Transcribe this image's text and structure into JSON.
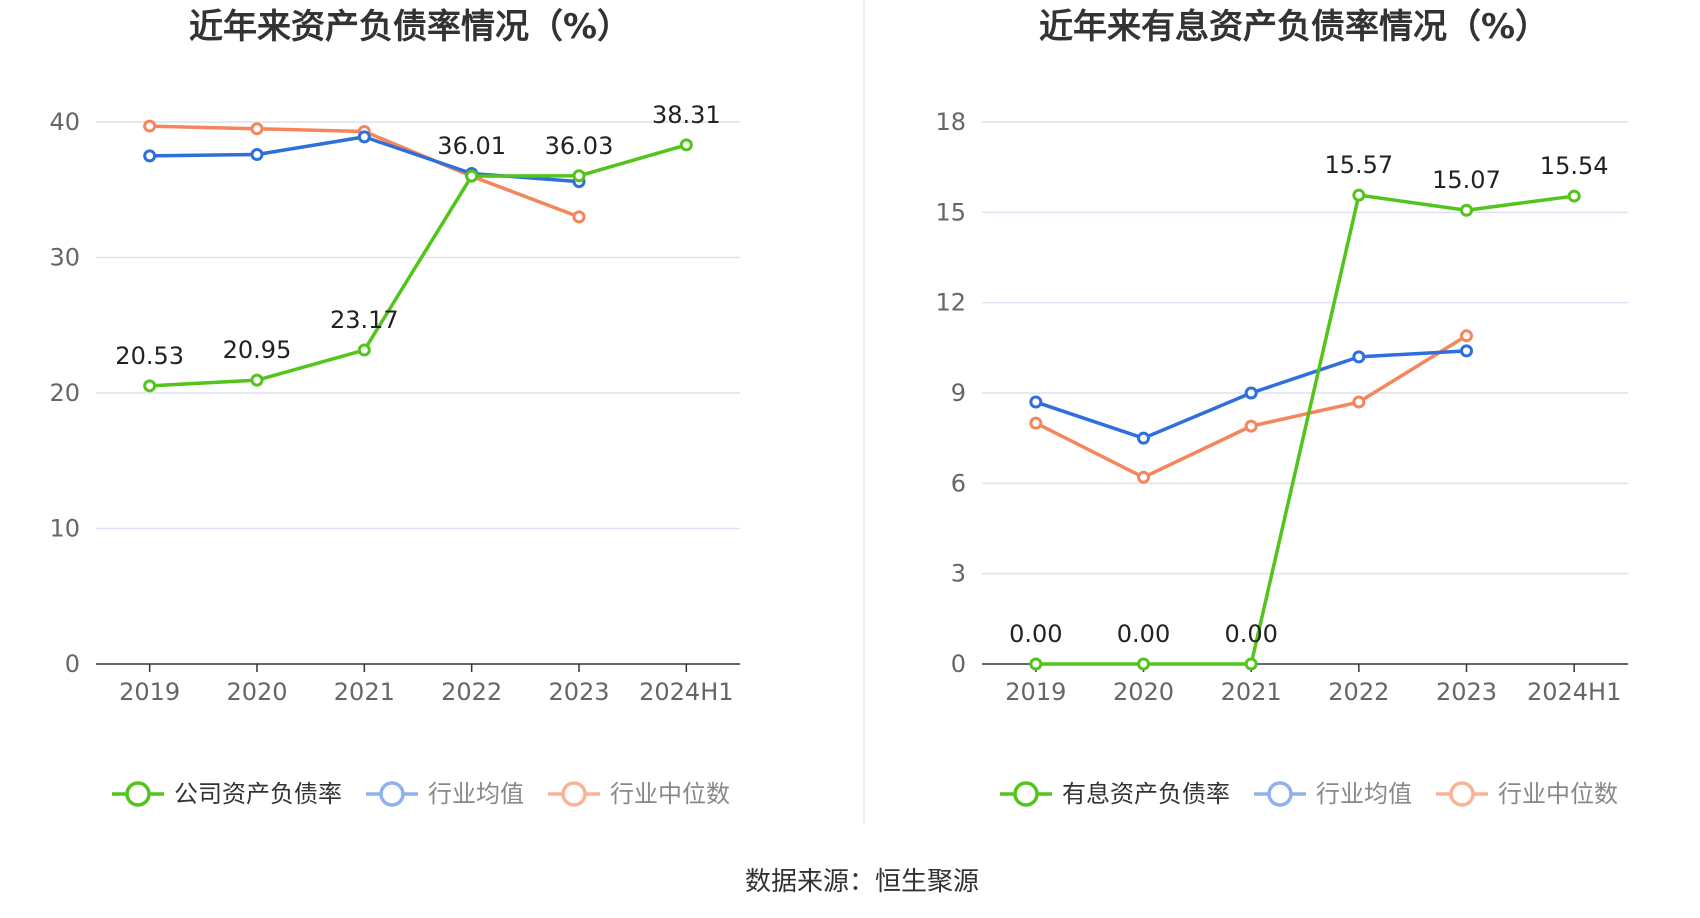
{
  "source_text": "数据来源：恒生聚源",
  "chart_data": [
    {
      "type": "line",
      "title": "近年来资产负债率情况（%）",
      "categories": [
        "2019",
        "2020",
        "2021",
        "2022",
        "2023",
        "2024H1"
      ],
      "ylim": [
        0,
        40
      ],
      "yticks": [
        0,
        10,
        20,
        30,
        40
      ],
      "ytick_labels": [
        "0",
        "10",
        "20",
        "30",
        "40"
      ],
      "grid": true,
      "legend_position": "bottom",
      "series": [
        {
          "name": "公司资产负债率",
          "color": "#52c41a",
          "values": [
            20.53,
            20.95,
            23.17,
            36.01,
            36.03,
            38.31
          ],
          "labels": [
            "20.53",
            "20.95",
            "23.17",
            "36.01",
            "36.03",
            "38.31"
          ]
        },
        {
          "name": "行业均值",
          "color": "#2f6fdc",
          "legend_color": "#8fb2ec",
          "values": [
            37.5,
            37.6,
            38.9,
            36.2,
            35.6,
            null
          ]
        },
        {
          "name": "行业中位数",
          "color": "#f5855a",
          "legend_color": "#f9b496",
          "values": [
            39.7,
            39.5,
            39.3,
            36.0,
            33.0,
            null
          ]
        }
      ]
    },
    {
      "type": "line",
      "title": "近年来有息资产负债率情况（%）",
      "categories": [
        "2019",
        "2020",
        "2021",
        "2022",
        "2023",
        "2024H1"
      ],
      "ylim": [
        0,
        18
      ],
      "yticks": [
        0,
        3,
        6,
        9,
        12,
        15,
        18
      ],
      "ytick_labels": [
        "0",
        "3",
        "6",
        "9",
        "12",
        "15",
        "18"
      ],
      "grid": true,
      "legend_position": "bottom",
      "series": [
        {
          "name": "有息资产负债率",
          "color": "#52c41a",
          "values": [
            0.0,
            0.0,
            0.0,
            15.57,
            15.07,
            15.54
          ],
          "labels": [
            "0.00",
            "0.00",
            "0.00",
            "15.57",
            "15.07",
            "15.54"
          ]
        },
        {
          "name": "行业均值",
          "color": "#2f6fdc",
          "legend_color": "#8fb2ec",
          "values": [
            8.7,
            7.5,
            9.0,
            10.2,
            10.4,
            null
          ]
        },
        {
          "name": "行业中位数",
          "color": "#f5855a",
          "legend_color": "#f9b496",
          "values": [
            8.0,
            6.2,
            7.9,
            8.7,
            10.9,
            null
          ]
        }
      ]
    }
  ]
}
